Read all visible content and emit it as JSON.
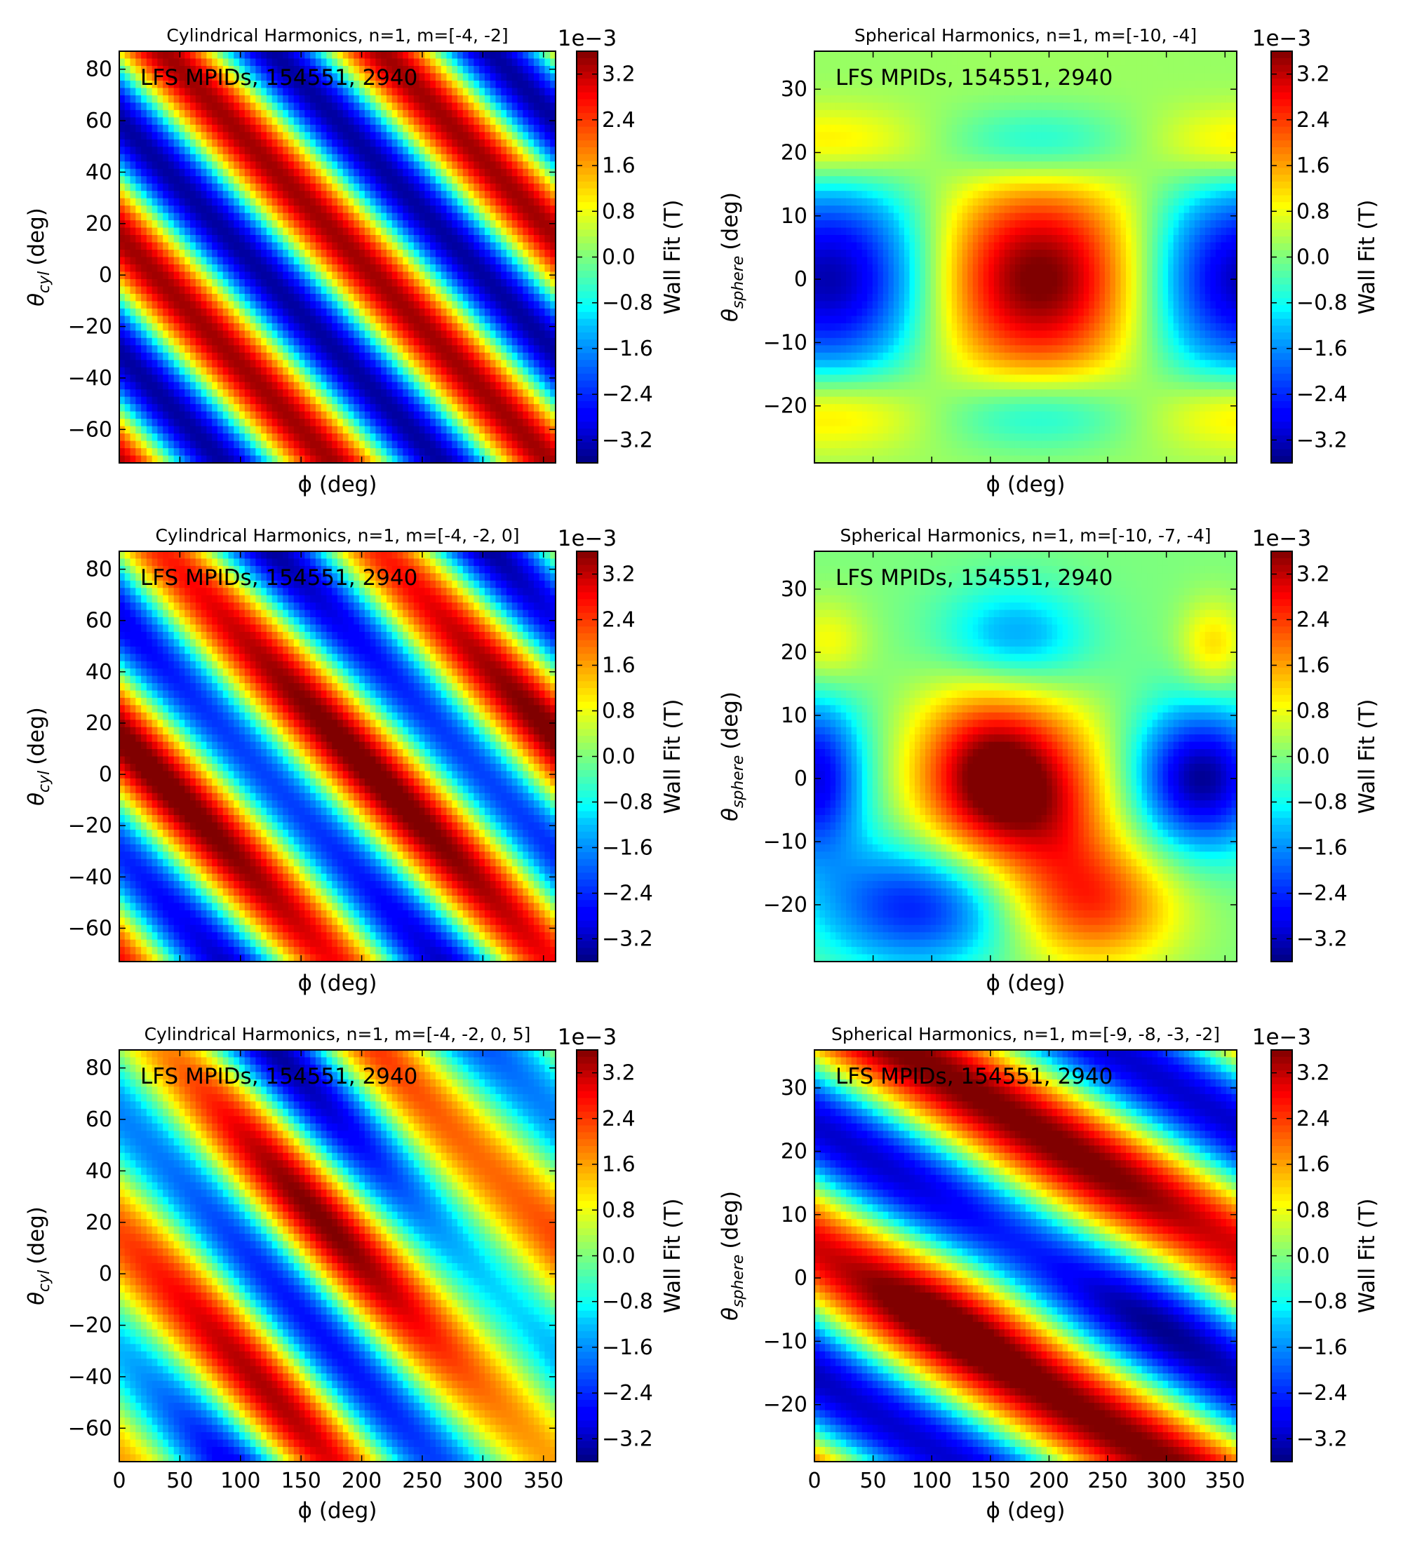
{
  "colorbar": {
    "label": "Wall Fit (T)",
    "exponent": "1e−3",
    "ticks": [
      "−3.2",
      "−2.4",
      "−1.6",
      "−0.8",
      "0.0",
      "0.8",
      "1.6",
      "2.4",
      "3.2"
    ]
  },
  "chart_data": [
    {
      "type": "heatmap",
      "title": "Cylindrical Harmonics, n=1, m=[-4, -2]",
      "annotation": "LFS MPIDs, 154551, 2940",
      "xlabel": "ϕ (deg)",
      "ylabel_main": "θ",
      "ylabel_sub": "cyl",
      "ylabel_tail": "(deg)",
      "xlim": [
        0,
        360
      ],
      "ylim": [
        -73,
        87
      ],
      "xticks": [],
      "yticks": [
        "−60",
        "−40",
        "−20",
        "0",
        "20",
        "40",
        "60",
        "80"
      ],
      "cbar_range": [
        -3.6,
        3.6
      ],
      "cbar_ticks": [
        -3.2,
        -2.4,
        -1.6,
        -0.8,
        0.0,
        0.8,
        1.6,
        2.4,
        3.2
      ]
    },
    {
      "type": "heatmap",
      "title": "Spherical Harmonics, n=1, m=[-10, -4]",
      "annotation": "LFS MPIDs, 154551, 2940",
      "xlabel": "ϕ (deg)",
      "ylabel_main": "θ",
      "ylabel_sub": "sphere",
      "ylabel_tail": "(deg)",
      "xlim": [
        0,
        360
      ],
      "ylim": [
        -29,
        36
      ],
      "xticks": [],
      "yticks": [
        "−20",
        "−10",
        "0",
        "10",
        "20",
        "30"
      ],
      "cbar_range": [
        -3.6,
        3.6
      ],
      "cbar_ticks": [
        -3.2,
        -2.4,
        -1.6,
        -0.8,
        0.0,
        0.8,
        1.6,
        2.4,
        3.2
      ]
    },
    {
      "type": "heatmap",
      "title": "Cylindrical Harmonics, n=1, m=[-4, -2, 0]",
      "annotation": "LFS MPIDs, 154551, 2940",
      "xlabel": "ϕ (deg)",
      "ylabel_main": "θ",
      "ylabel_sub": "cyl",
      "ylabel_tail": "(deg)",
      "xlim": [
        0,
        360
      ],
      "ylim": [
        -73,
        87
      ],
      "xticks": [],
      "yticks": [
        "−60",
        "−40",
        "−20",
        "0",
        "20",
        "40",
        "60",
        "80"
      ],
      "cbar_range": [
        -3.6,
        3.6
      ],
      "cbar_ticks": [
        -3.2,
        -2.4,
        -1.6,
        -0.8,
        0.0,
        0.8,
        1.6,
        2.4,
        3.2
      ]
    },
    {
      "type": "heatmap",
      "title": "Spherical Harmonics, n=1, m=[-10, -7, -4]",
      "annotation": "LFS MPIDs, 154551, 2940",
      "xlabel": "ϕ (deg)",
      "ylabel_main": "θ",
      "ylabel_sub": "sphere",
      "ylabel_tail": "(deg)",
      "xlim": [
        0,
        360
      ],
      "ylim": [
        -29,
        36
      ],
      "xticks": [],
      "yticks": [
        "−20",
        "−10",
        "0",
        "10",
        "20",
        "30"
      ],
      "cbar_range": [
        -3.6,
        3.6
      ],
      "cbar_ticks": [
        -3.2,
        -2.4,
        -1.6,
        -0.8,
        0.0,
        0.8,
        1.6,
        2.4,
        3.2
      ]
    },
    {
      "type": "heatmap",
      "title": "Cylindrical Harmonics, n=1, m=[-4, -2, 0, 5]",
      "annotation": "LFS MPIDs, 154551, 2940",
      "xlabel": "ϕ (deg)",
      "ylabel_main": "θ",
      "ylabel_sub": "cyl",
      "ylabel_tail": "(deg)",
      "xlim": [
        0,
        360
      ],
      "ylim": [
        -73,
        87
      ],
      "xticks": [
        "0",
        "50",
        "100",
        "150",
        "200",
        "250",
        "300",
        "350"
      ],
      "yticks": [
        "−60",
        "−40",
        "−20",
        "0",
        "20",
        "40",
        "60",
        "80"
      ],
      "cbar_range": [
        -3.6,
        3.6
      ],
      "cbar_ticks": [
        -3.2,
        -2.4,
        -1.6,
        -0.8,
        0.0,
        0.8,
        1.6,
        2.4,
        3.2
      ]
    },
    {
      "type": "heatmap",
      "title": "Spherical Harmonics, n=1, m=[-9, -8, -3, -2]",
      "annotation": "LFS MPIDs, 154551, 2940",
      "xlabel": "ϕ (deg)",
      "ylabel_main": "θ",
      "ylabel_sub": "sphere",
      "ylabel_tail": "(deg)",
      "xlim": [
        0,
        360
      ],
      "ylim": [
        -29,
        36
      ],
      "xticks": [
        "0",
        "50",
        "100",
        "150",
        "200",
        "250",
        "300",
        "350"
      ],
      "yticks": [
        "−20",
        "−10",
        "0",
        "10",
        "20",
        "30"
      ],
      "cbar_range": [
        -3.6,
        3.6
      ],
      "cbar_ticks": [
        -3.2,
        -2.4,
        -1.6,
        -0.8,
        0.0,
        0.8,
        1.6,
        2.4,
        3.2
      ]
    }
  ]
}
